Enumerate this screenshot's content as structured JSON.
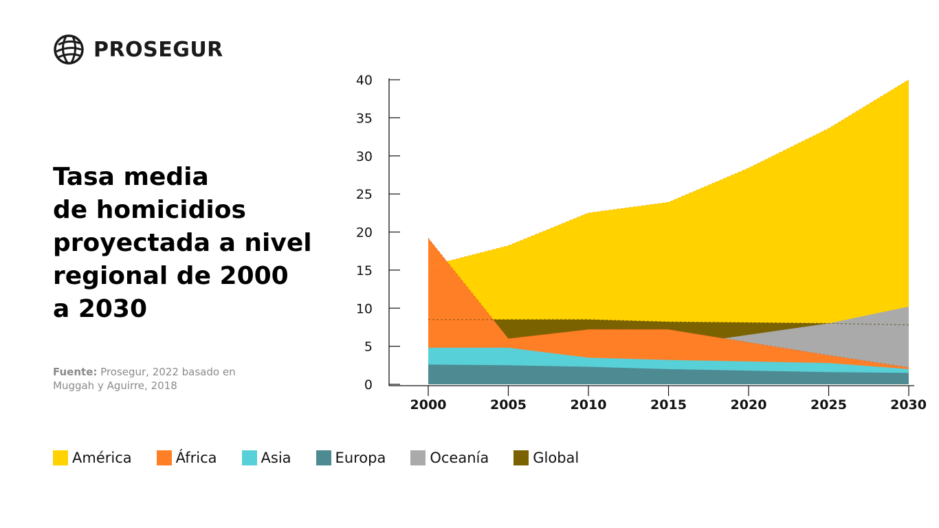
{
  "brand": {
    "name": "PROSEGUR",
    "icon": "globe-icon"
  },
  "title_lines": [
    "Tasa media",
    "de homicidios",
    "proyectada a nivel",
    "regional de 2000",
    "a 2030"
  ],
  "source": {
    "label": "Fuente:",
    "line1": " Prosegur, 2022 basado en",
    "line2": "Muggah y Aguirre, 2018"
  },
  "chart_data": {
    "type": "area",
    "x": [
      2000,
      2005,
      2010,
      2015,
      2020,
      2025,
      2030
    ],
    "ylim": [
      0,
      40
    ],
    "yticks": [
      "0",
      "5",
      "10",
      "15",
      "20",
      "25",
      "30",
      "35",
      "40"
    ],
    "xticks": [
      "2000",
      "2005",
      "2010",
      "2015",
      "2020",
      "2025",
      "2030"
    ],
    "grid": false,
    "legend_position": "bottom",
    "series": [
      {
        "name": "América",
        "color": "#FFD200",
        "values": [
          15.5,
          18.2,
          22.5,
          23.9,
          28.4,
          33.6,
          40.0
        ]
      },
      {
        "name": "África",
        "color": "#FF7F27",
        "values": [
          19.2,
          6.0,
          7.2,
          7.2,
          5.5,
          3.8,
          2.2
        ]
      },
      {
        "name": "Asia",
        "color": "#57D0D8",
        "values": [
          4.8,
          4.8,
          3.5,
          3.2,
          3.0,
          2.8,
          2.0
        ]
      },
      {
        "name": "Europa",
        "color": "#4E8A92",
        "values": [
          2.6,
          2.5,
          2.3,
          2.0,
          1.8,
          1.6,
          1.5
        ]
      },
      {
        "name": "Oceanía",
        "color": "#AAAAAA",
        "values": [
          3.5,
          4.0,
          4.5,
          5.0,
          6.5,
          8.0,
          10.2
        ]
      },
      {
        "name": "Global",
        "color": "#7A6200",
        "values": [
          8.5,
          8.5,
          8.5,
          8.2,
          8.1,
          8.0,
          7.8
        ]
      }
    ]
  }
}
